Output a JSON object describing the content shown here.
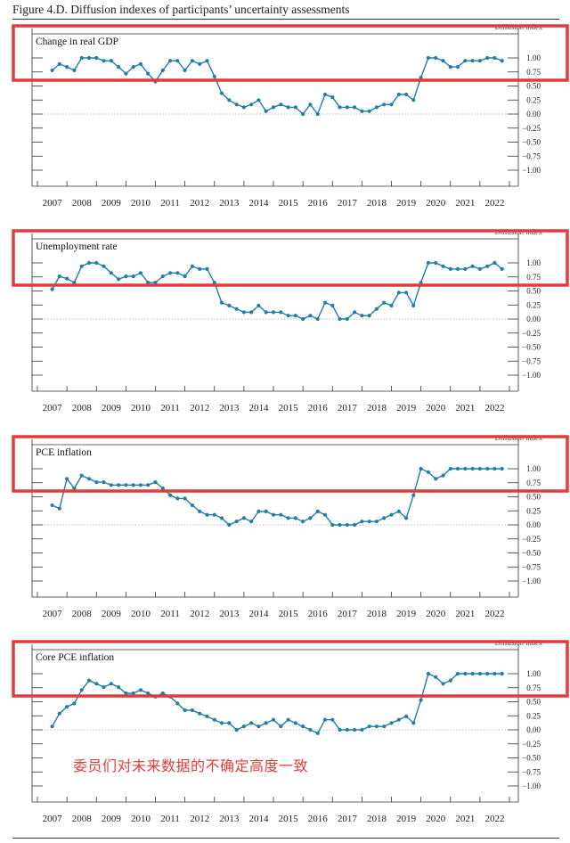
{
  "figure_title": "Figure 4.D. Diffusion indexes of participants’ uncertainty assessments",
  "annotation": "委员们对未来数据的不确定高度一致",
  "colors": {
    "line": "#1f7fa8",
    "highlight_box": "#e33a3a",
    "axis": "#333333",
    "zero_line": "#999999"
  },
  "chart_data": [
    {
      "type": "line",
      "title": "Change in real GDP",
      "ylabel": "Diffusion index",
      "ylim": [
        -1.0,
        1.0
      ],
      "y_ticks": [
        "1.00",
        "0.75",
        "0.50",
        "0.25",
        "0.00",
        "−0.25",
        "−0.50",
        "−0.75",
        "−1.00"
      ],
      "x_ticks": [
        "2007",
        "2008",
        "2009",
        "2010",
        "2011",
        "2012",
        "2013",
        "2014",
        "2015",
        "2016",
        "2017",
        "2018",
        "2019",
        "2020",
        "2021",
        "2022"
      ],
      "x_start": 2007.5,
      "x_step": 0.25,
      "values": [
        0.78,
        0.89,
        0.84,
        0.78,
        1.0,
        1.0,
        1.0,
        0.95,
        0.95,
        0.84,
        0.72,
        0.84,
        0.89,
        0.72,
        0.58,
        0.78,
        0.95,
        0.95,
        0.78,
        0.95,
        0.89,
        0.95,
        0.67,
        0.37,
        0.25,
        0.17,
        0.12,
        0.17,
        0.25,
        0.05,
        0.12,
        0.17,
        0.12,
        0.12,
        0.0,
        0.17,
        0.0,
        0.35,
        0.3,
        0.12,
        0.12,
        0.12,
        0.05,
        0.05,
        0.12,
        0.17,
        0.17,
        0.35,
        0.35,
        0.25,
        0.65,
        1.0,
        1.0,
        0.95,
        0.84,
        0.84,
        0.95,
        0.95,
        0.95,
        1.0,
        1.0,
        0.95
      ],
      "highlight": true
    },
    {
      "type": "line",
      "title": "Unemployment rate",
      "ylabel": "Diffusion index",
      "ylim": [
        -1.0,
        1.0
      ],
      "y_ticks": [
        "1.00",
        "0.75",
        "0.50",
        "0.25",
        "0.00",
        "−0.25",
        "−0.50",
        "−0.75",
        "−1.00"
      ],
      "x_ticks": [
        "2007",
        "2008",
        "2009",
        "2010",
        "2011",
        "2012",
        "2013",
        "2014",
        "2015",
        "2016",
        "2017",
        "2018",
        "2019",
        "2020",
        "2021",
        "2022"
      ],
      "x_start": 2007.5,
      "x_step": 0.25,
      "values": [
        0.53,
        0.76,
        0.72,
        0.65,
        0.94,
        1.0,
        1.0,
        0.94,
        0.82,
        0.71,
        0.76,
        0.76,
        0.82,
        0.65,
        0.65,
        0.76,
        0.82,
        0.82,
        0.76,
        0.94,
        0.89,
        0.89,
        0.65,
        0.29,
        0.24,
        0.18,
        0.12,
        0.12,
        0.24,
        0.12,
        0.12,
        0.12,
        0.06,
        0.06,
        0.0,
        0.06,
        0.0,
        0.29,
        0.24,
        0.0,
        0.0,
        0.12,
        0.06,
        0.06,
        0.18,
        0.29,
        0.24,
        0.47,
        0.47,
        0.24,
        0.65,
        1.0,
        1.0,
        0.94,
        0.89,
        0.89,
        0.89,
        0.94,
        0.89,
        0.94,
        1.0,
        0.89
      ],
      "highlight": true
    },
    {
      "type": "line",
      "title": "PCE inflation",
      "ylabel": "Diffusion index",
      "ylim": [
        -1.0,
        1.0
      ],
      "y_ticks": [
        "1.00",
        "0.75",
        "0.50",
        "0.25",
        "0.00",
        "−0.25",
        "−0.50",
        "−0.75",
        "−1.00"
      ],
      "x_ticks": [
        "2007",
        "2008",
        "2009",
        "2010",
        "2011",
        "2012",
        "2013",
        "2014",
        "2015",
        "2016",
        "2017",
        "2018",
        "2019",
        "2020",
        "2021",
        "2022"
      ],
      "x_start": 2007.5,
      "x_step": 0.25,
      "values": [
        0.35,
        0.29,
        0.82,
        0.65,
        0.88,
        0.82,
        0.76,
        0.76,
        0.71,
        0.71,
        0.71,
        0.71,
        0.71,
        0.71,
        0.76,
        0.65,
        0.53,
        0.47,
        0.47,
        0.35,
        0.24,
        0.18,
        0.18,
        0.12,
        0.0,
        0.06,
        0.12,
        0.06,
        0.24,
        0.24,
        0.18,
        0.18,
        0.12,
        0.12,
        0.06,
        0.12,
        0.24,
        0.18,
        0.0,
        0.0,
        0.0,
        0.0,
        0.06,
        0.06,
        0.06,
        0.12,
        0.18,
        0.24,
        0.12,
        0.53,
        1.0,
        0.94,
        0.82,
        0.88,
        1.0,
        1.0,
        1.0,
        1.0,
        1.0,
        1.0,
        1.0,
        1.0
      ],
      "highlight": true
    },
    {
      "type": "line",
      "title": "Core PCE inflation",
      "ylabel": "Diffusion index",
      "ylim": [
        -1.0,
        1.0
      ],
      "y_ticks": [
        "1.00",
        "0.75",
        "0.50",
        "0.25",
        "0.00",
        "−0.25",
        "−0.50",
        "−0.75",
        "−1.00"
      ],
      "x_ticks": [
        "2007",
        "2008",
        "2009",
        "2010",
        "2011",
        "2012",
        "2013",
        "2014",
        "2015",
        "2016",
        "2017",
        "2018",
        "2019",
        "2020",
        "2021",
        "2022"
      ],
      "x_start": 2007.5,
      "x_step": 0.25,
      "values": [
        0.06,
        0.29,
        0.41,
        0.47,
        0.71,
        0.88,
        0.82,
        0.76,
        0.82,
        0.76,
        0.65,
        0.65,
        0.71,
        0.65,
        0.59,
        0.65,
        0.59,
        0.47,
        0.35,
        0.35,
        0.29,
        0.24,
        0.18,
        0.12,
        0.12,
        0.0,
        0.06,
        0.12,
        0.06,
        0.12,
        0.18,
        0.06,
        0.18,
        0.12,
        0.06,
        0.0,
        -0.06,
        0.18,
        0.18,
        0.0,
        0.0,
        0.0,
        0.0,
        0.06,
        0.06,
        0.06,
        0.12,
        0.18,
        0.24,
        0.12,
        0.53,
        1.0,
        0.94,
        0.82,
        0.88,
        1.0,
        1.0,
        1.0,
        1.0,
        1.0,
        1.0,
        1.0
      ],
      "highlight": true
    }
  ]
}
